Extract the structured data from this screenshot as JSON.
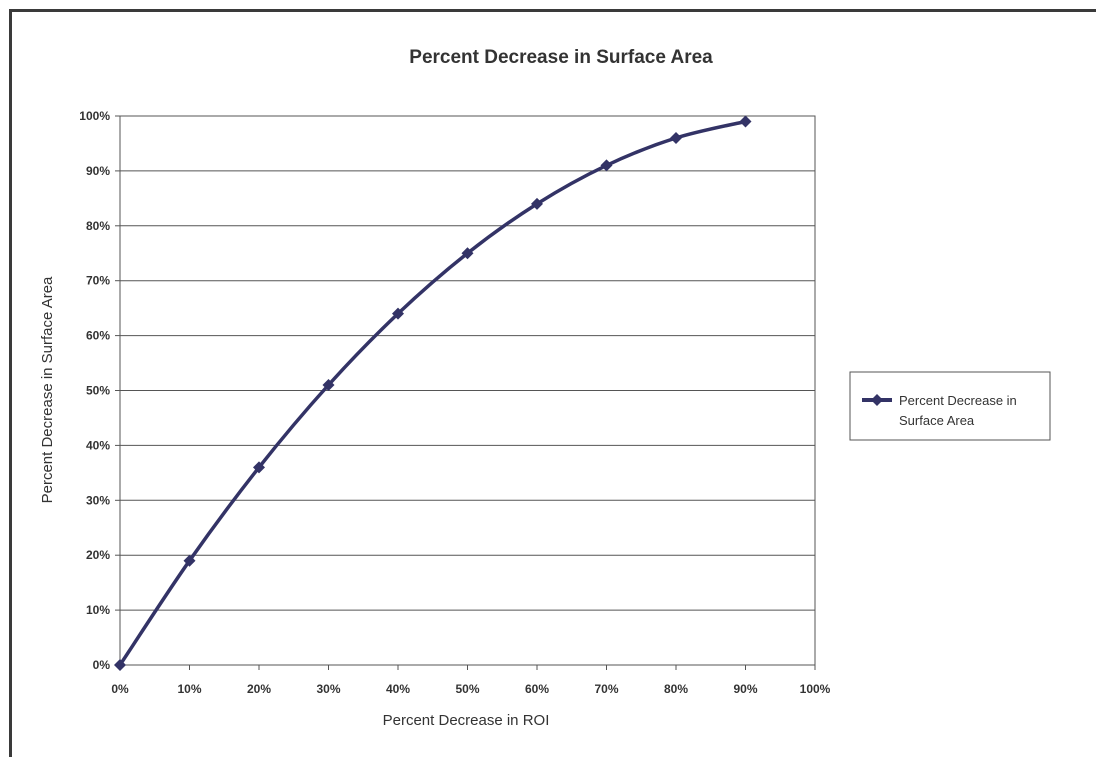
{
  "chart_data": {
    "type": "line",
    "title": "Percent Decrease in Surface Area",
    "xlabel": "Percent Decrease in ROI",
    "ylabel": "Percent Decrease in Surface Area",
    "x_ticks": [
      "0%",
      "10%",
      "20%",
      "30%",
      "40%",
      "50%",
      "60%",
      "70%",
      "80%",
      "90%",
      "100%"
    ],
    "y_ticks": [
      "0%",
      "10%",
      "20%",
      "30%",
      "40%",
      "50%",
      "60%",
      "70%",
      "80%",
      "90%",
      "100%"
    ],
    "xlim": [
      0,
      1
    ],
    "ylim": [
      0,
      1
    ],
    "grid": "horizontal",
    "legend_position": "right",
    "series": [
      {
        "name": "Percent Decrease in Surface Area",
        "legend_lines": [
          "Percent Decrease in",
          "Surface Area"
        ],
        "color": "#333366",
        "marker": "diamond",
        "x": [
          0,
          0.1,
          0.2,
          0.3,
          0.4,
          0.5,
          0.6,
          0.7,
          0.8,
          0.9
        ],
        "y": [
          0,
          0.19,
          0.36,
          0.51,
          0.64,
          0.75,
          0.84,
          0.91,
          0.96,
          0.99
        ]
      }
    ]
  }
}
